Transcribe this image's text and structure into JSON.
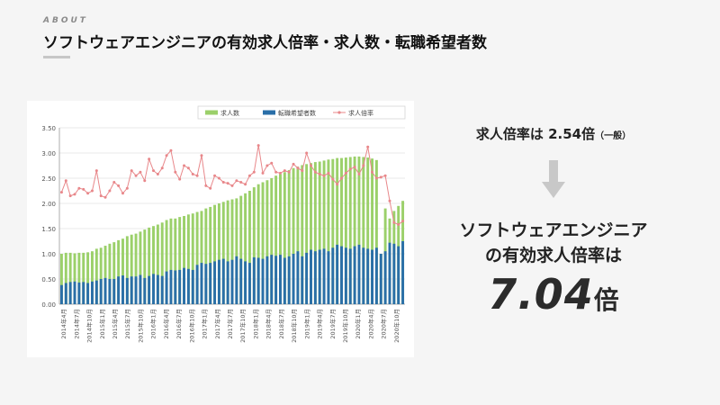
{
  "header": {
    "eyebrow": "ABOUT",
    "title": "ソフトウェアエンジニアの有効求人倍率・求人数・転職希望者数"
  },
  "panel": {
    "rate_label": "求人倍率は",
    "rate_value": "2.54倍",
    "rate_note": "（一般）",
    "arrow_icon": "down-arrow-icon",
    "headline_line1": "ソフトウェアエンジニア",
    "headline_line2": "の有効求人倍率は",
    "big_value": "7.04",
    "big_unit": "倍"
  },
  "chart_data": {
    "type": "bar",
    "title": "",
    "xlabel": "",
    "ylabel": "",
    "ylim": [
      0,
      3.5
    ],
    "yticks": [
      "0.00",
      "0.50",
      "1.00",
      "1.50",
      "2.00",
      "2.50",
      "3.00",
      "3.50"
    ],
    "grid": true,
    "legend_position": "top",
    "legend": [
      "求人数",
      "転職希望者数",
      "求人倍率"
    ],
    "colors": {
      "jobs": "#9bd06a",
      "seekers": "#2a6fa8",
      "ratio": "#e8878a"
    },
    "x_labels": [
      "2014年4月",
      "2014年7月",
      "2014年10月",
      "2015年1月",
      "2015年4月",
      "2015年7月",
      "2015年10月",
      "2016年1月",
      "2016年4月",
      "2016年7月",
      "2016年10月",
      "2017年1月",
      "2017年4月",
      "2017年7月",
      "2017年10月",
      "2018年1月",
      "2018年4月",
      "2018年7月",
      "2018年10月",
      "2019年1月",
      "2019年4月",
      "2019年7月",
      "2019年10月",
      "2020年1月",
      "2020年4月",
      "2020年7月",
      "2020年10月"
    ],
    "series": [
      {
        "name": "求人数",
        "kind": "bar",
        "values": [
          1.0,
          1.02,
          1.02,
          1.01,
          1.02,
          1.02,
          1.03,
          1.05,
          1.1,
          1.12,
          1.16,
          1.2,
          1.23,
          1.27,
          1.3,
          1.35,
          1.38,
          1.4,
          1.44,
          1.48,
          1.52,
          1.55,
          1.58,
          1.62,
          1.67,
          1.7,
          1.7,
          1.73,
          1.75,
          1.78,
          1.8,
          1.83,
          1.85,
          1.9,
          1.93,
          1.97,
          2.0,
          2.03,
          2.06,
          2.08,
          2.1,
          2.15,
          2.2,
          2.25,
          2.32,
          2.38,
          2.42,
          2.46,
          2.5,
          2.55,
          2.58,
          2.62,
          2.66,
          2.7,
          2.73,
          2.76,
          2.78,
          2.8,
          2.82,
          2.83,
          2.85,
          2.87,
          2.88,
          2.9,
          2.9,
          2.91,
          2.92,
          2.93,
          2.93,
          2.92,
          2.91,
          2.89,
          2.86,
          1.0,
          1.9,
          1.7,
          1.85,
          1.95,
          2.05
        ]
      },
      {
        "name": "転職希望者数",
        "kind": "bar",
        "values": [
          0.38,
          0.42,
          0.44,
          0.45,
          0.43,
          0.44,
          0.42,
          0.45,
          0.47,
          0.5,
          0.52,
          0.5,
          0.5,
          0.55,
          0.57,
          0.52,
          0.55,
          0.55,
          0.58,
          0.52,
          0.56,
          0.6,
          0.58,
          0.56,
          0.65,
          0.68,
          0.67,
          0.68,
          0.72,
          0.7,
          0.68,
          0.78,
          0.82,
          0.8,
          0.82,
          0.85,
          0.88,
          0.9,
          0.85,
          0.88,
          0.95,
          0.9,
          0.85,
          0.82,
          0.93,
          0.92,
          0.9,
          0.95,
          0.98,
          0.96,
          0.98,
          0.92,
          0.95,
          1.0,
          1.05,
          0.95,
          1.02,
          1.08,
          1.05,
          1.08,
          1.1,
          1.05,
          1.12,
          1.18,
          1.15,
          1.12,
          1.1,
          1.15,
          1.18,
          1.12,
          1.1,
          1.08,
          1.12,
          1.0,
          1.05,
          1.22,
          1.2,
          1.15,
          1.25
        ]
      },
      {
        "name": "求人倍率",
        "kind": "line",
        "values": [
          2.22,
          2.45,
          2.15,
          2.18,
          2.3,
          2.28,
          2.2,
          2.25,
          2.65,
          2.15,
          2.12,
          2.25,
          2.42,
          2.35,
          2.2,
          2.3,
          2.65,
          2.55,
          2.62,
          2.45,
          2.88,
          2.65,
          2.58,
          2.7,
          2.95,
          3.05,
          2.62,
          2.48,
          2.75,
          2.7,
          2.58,
          2.55,
          2.95,
          2.35,
          2.3,
          2.55,
          2.5,
          2.42,
          2.4,
          2.35,
          2.45,
          2.42,
          2.38,
          2.55,
          2.62,
          3.15,
          2.6,
          2.75,
          2.8,
          2.62,
          2.6,
          2.65,
          2.62,
          2.78,
          2.7,
          2.65,
          3.0,
          2.75,
          2.62,
          2.58,
          2.55,
          2.6,
          2.48,
          2.38,
          2.5,
          2.6,
          2.68,
          2.72,
          2.58,
          2.75,
          3.12,
          2.62,
          2.5,
          2.52,
          2.55,
          2.05,
          1.62,
          1.58,
          1.65
        ]
      }
    ]
  }
}
